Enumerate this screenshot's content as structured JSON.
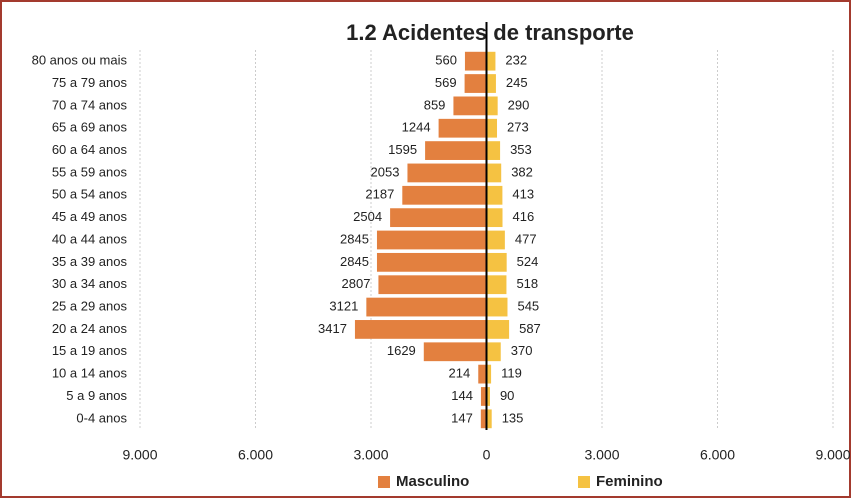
{
  "chart_data": {
    "type": "bar",
    "title": "1.2 Acidentes de transporte",
    "categories": [
      "80 anos ou mais",
      "75 a 79 anos",
      "70 a 74 anos",
      "65 a 69 anos",
      "60 a 64 anos",
      "55 a 59 anos",
      "50 a 54 anos",
      "45 a 49 anos",
      "40 a 44 anos",
      "35 a 39 anos",
      "30 a 34 anos",
      "25 a 29 anos",
      "20 a 24 anos",
      "15 a 19 anos",
      "10 a 14 anos",
      "5 a 9 anos",
      "0-4 anos"
    ],
    "series": [
      {
        "name": "Masculino",
        "color": "#e3803f",
        "side": "left",
        "values": [
          560,
          569,
          859,
          1244,
          1595,
          2053,
          2187,
          2504,
          2845,
          2845,
          2807,
          3121,
          3417,
          1629,
          214,
          144,
          147
        ]
      },
      {
        "name": "Feminino",
        "color": "#f5c242",
        "side": "right",
        "values": [
          232,
          245,
          290,
          273,
          353,
          382,
          413,
          416,
          477,
          524,
          518,
          545,
          587,
          370,
          119,
          90,
          135
        ]
      }
    ],
    "xlim": [
      -9000,
      9000
    ],
    "xticks": [
      {
        "value": -9000,
        "label": "9.000"
      },
      {
        "value": -6000,
        "label": "6.000"
      },
      {
        "value": -3000,
        "label": "3.000"
      },
      0,
      {
        "value": 3000,
        "label": "3.000"
      },
      {
        "value": 6000,
        "label": "6.000"
      },
      {
        "value": 9000,
        "label": "9.000"
      }
    ],
    "grid": true,
    "legend": "bottom"
  }
}
